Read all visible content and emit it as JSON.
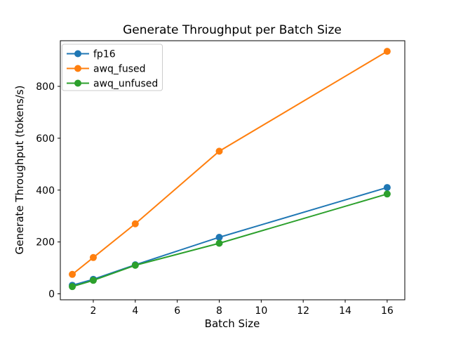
{
  "chart_data": {
    "type": "line",
    "title": "Generate Throughput per Batch Size",
    "xlabel": "Batch Size",
    "ylabel": "Generate Throughput (tokens/s)",
    "x": [
      1,
      2,
      4,
      8,
      16
    ],
    "series": [
      {
        "name": "fp16",
        "color": "#1f77b4",
        "values": [
          33,
          56,
          112,
          218,
          410
        ]
      },
      {
        "name": "awq_fused",
        "color": "#ff7f0e",
        "values": [
          75,
          140,
          270,
          550,
          935
        ]
      },
      {
        "name": "awq_unfused",
        "color": "#2ca02c",
        "values": [
          28,
          52,
          110,
          195,
          385
        ]
      }
    ],
    "xticks": [
      2,
      4,
      6,
      8,
      10,
      12,
      14,
      16
    ],
    "yticks": [
      0,
      200,
      400,
      600,
      800
    ],
    "xlim": [
      0.43,
      16.84
    ],
    "ylim": [
      -23,
      976
    ],
    "grid": false,
    "marker": "circle",
    "legend_position": "upper left",
    "colors": {
      "spine": "#000000",
      "background": "#ffffff",
      "legend_border": "#cccccc"
    }
  }
}
